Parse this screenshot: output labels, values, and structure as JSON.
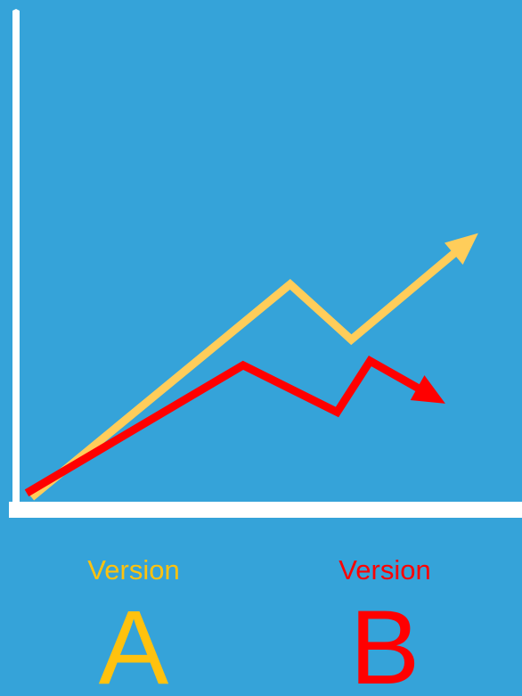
{
  "chart_data": {
    "type": "line",
    "title": "",
    "xlabel": "",
    "ylabel": "",
    "grid": false,
    "xlim": [
      0,
      10
    ],
    "ylim": [
      0,
      10
    ],
    "series": [
      {
        "id": "a",
        "color": "#ffcd5a",
        "points": [
          [
            0.1,
            0.0
          ],
          [
            5.6,
            5.0
          ],
          [
            6.9,
            3.7
          ],
          [
            9.6,
            6.2
          ]
        ]
      },
      {
        "id": "b",
        "color": "#ff0000",
        "points": [
          [
            0.0,
            0.1
          ],
          [
            4.6,
            3.1
          ],
          [
            6.6,
            2.0
          ],
          [
            7.3,
            3.2
          ],
          [
            8.9,
            2.2
          ]
        ]
      }
    ]
  },
  "legend": [
    {
      "label": "Version",
      "letter": "A",
      "color": "#ffc20e"
    },
    {
      "label": "Version",
      "letter": "B",
      "color": "#ff0000"
    }
  ],
  "colors": {
    "background": "#35a3d9",
    "axis": "#ffffff"
  }
}
